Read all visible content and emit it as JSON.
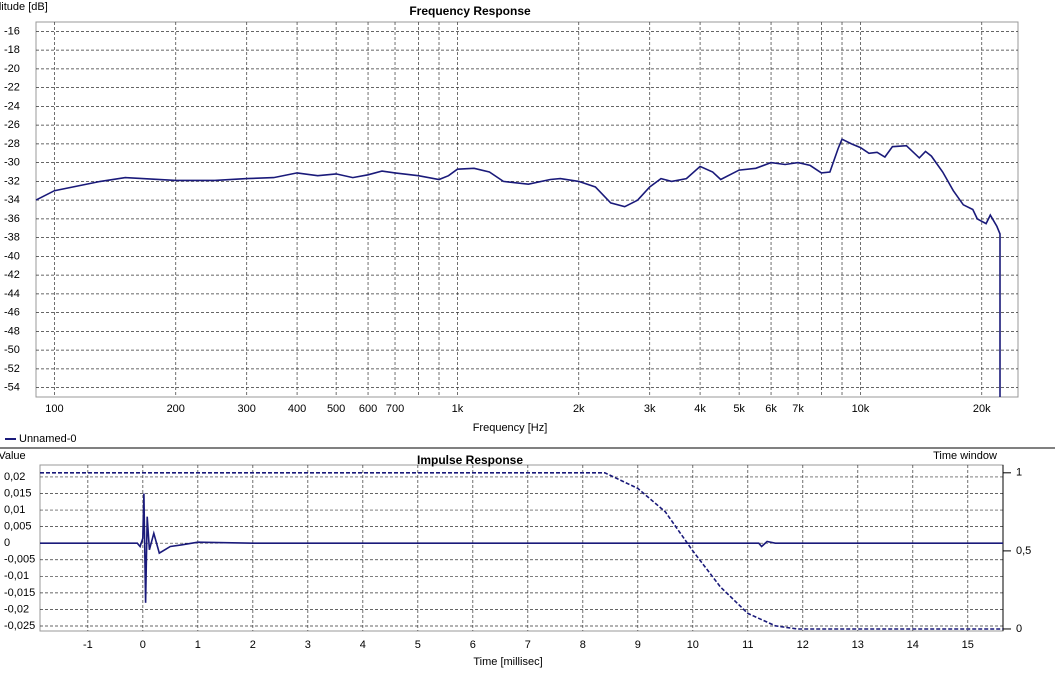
{
  "chart_data": [
    {
      "type": "line",
      "title": "Frequency Response",
      "y_label": "Amplitude [dB]",
      "x_label": "Frequency [Hz]",
      "xscale": "log",
      "grid": true,
      "xlim": [
        90,
        24600
      ],
      "ylim": [
        -55,
        -15
      ],
      "xticks": [
        100,
        200,
        300,
        400,
        500,
        600,
        700,
        {
          "value": 1000,
          "label": "1k"
        },
        {
          "value": 2000,
          "label": "2k"
        },
        {
          "value": 3000,
          "label": "3k"
        },
        {
          "value": 4000,
          "label": "4k"
        },
        {
          "value": 5000,
          "label": "5k"
        },
        {
          "value": 6000,
          "label": "6k"
        },
        {
          "value": 7000,
          "label": "7k"
        },
        {
          "value": 10000,
          "label": "10k"
        },
        {
          "value": 20000,
          "label": "20k"
        }
      ],
      "minor_xticks": [
        800,
        900,
        8000,
        9000
      ],
      "yticks": [
        -16,
        -18,
        -20,
        -22,
        -24,
        -26,
        -28,
        -30,
        -32,
        -34,
        -36,
        -38,
        -40,
        -42,
        -44,
        -46,
        -48,
        -50,
        -52,
        -54
      ],
      "series": [
        {
          "name": "Unnamed-0",
          "color": "#1a1a7a",
          "x": [
            90,
            100,
            130,
            150,
            200,
            250,
            300,
            350,
            400,
            450,
            500,
            550,
            600,
            650,
            700,
            800,
            900,
            950,
            1000,
            1100,
            1200,
            1300,
            1500,
            1700,
            1800,
            2000,
            2200,
            2400,
            2600,
            2800,
            3000,
            3200,
            3400,
            3700,
            4000,
            4300,
            4500,
            5000,
            5500,
            6000,
            6500,
            7000,
            7500,
            8000,
            8400,
            8800,
            9000,
            9500,
            10000,
            10500,
            11000,
            11500,
            12000,
            13000,
            14000,
            14500,
            15000,
            16000,
            17000,
            18000,
            19000,
            19500,
            20500,
            21000,
            21800,
            22200,
            22200
          ],
          "values": [
            -34,
            -33,
            -32,
            -31.6,
            -31.9,
            -31.9,
            -31.7,
            -31.6,
            -31.1,
            -31.4,
            -31.2,
            -31.6,
            -31.3,
            -30.9,
            -31.1,
            -31.4,
            -31.8,
            -31.4,
            -30.7,
            -30.6,
            -31,
            -32,
            -32.3,
            -31.8,
            -31.7,
            -32,
            -32.6,
            -34.3,
            -34.7,
            -34,
            -32.6,
            -31.7,
            -32,
            -31.7,
            -30.4,
            -31,
            -31.8,
            -30.8,
            -30.6,
            -30,
            -30.2,
            -30,
            -30.3,
            -31.1,
            -31,
            -28.5,
            -27.5,
            -28,
            -28.4,
            -29,
            -28.9,
            -29.4,
            -28.3,
            -28.2,
            -29.5,
            -28.8,
            -29.3,
            -31,
            -33,
            -34.5,
            -35,
            -36,
            -36.5,
            -35.6,
            -36.8,
            -37.6,
            -55
          ]
        }
      ]
    },
    {
      "type": "line",
      "title": "Impulse Response",
      "y_label": "Value",
      "y2_label": "Time window",
      "x_label": "Time [millisec]",
      "grid": true,
      "xlim": [
        -1.87,
        15.64
      ],
      "ylim": [
        -0.0265,
        0.0236
      ],
      "y2lim": [
        -0.013,
        1.05
      ],
      "xticks": [
        -1,
        0,
        1,
        2,
        3,
        4,
        5,
        6,
        7,
        8,
        9,
        10,
        11,
        12,
        13,
        14,
        15
      ],
      "yticks": [
        {
          "value": 0.02,
          "label": "0,02"
        },
        {
          "value": 0.015,
          "label": "0,015"
        },
        {
          "value": 0.01,
          "label": "0,01"
        },
        {
          "value": 0.005,
          "label": "0,005"
        },
        0,
        {
          "value": -0.005,
          "label": "-0,005"
        },
        {
          "value": -0.01,
          "label": "-0,01"
        },
        {
          "value": -0.015,
          "label": "-0,015"
        },
        {
          "value": -0.02,
          "label": "-0,02"
        },
        {
          "value": -0.025,
          "label": "-0,025"
        }
      ],
      "y2ticks": [
        1,
        {
          "value": 0.5,
          "label": "0,5"
        },
        0
      ],
      "series": [
        {
          "color": "#1a1a7a",
          "x": [
            -1.87,
            -0.1,
            -0.05,
            0,
            0.02,
            0.05,
            0.08,
            0.12,
            0.2,
            0.3,
            0.4,
            0.5,
            0.7,
            1,
            2,
            3,
            11.2,
            11.25,
            11.35,
            11.5,
            15.64
          ],
          "values": [
            0,
            0,
            -0.001,
            0.0015,
            0.015,
            -0.018,
            0.008,
            -0.002,
            0.003,
            -0.003,
            -0.002,
            -0.001,
            -0.0005,
            0.0003,
            0,
            0,
            0,
            -0.001,
            0.0005,
            0,
            0
          ]
        },
        {
          "color": "#1a1a7a",
          "axis": "y2",
          "line_style": "dashed",
          "x": [
            -1.87,
            8.4,
            9,
            9.5,
            10,
            10.5,
            11,
            11.5,
            11.9,
            15.64
          ],
          "values": [
            1,
            1,
            0.9,
            0.75,
            0.5,
            0.27,
            0.1,
            0.02,
            0,
            0
          ]
        }
      ]
    }
  ]
}
